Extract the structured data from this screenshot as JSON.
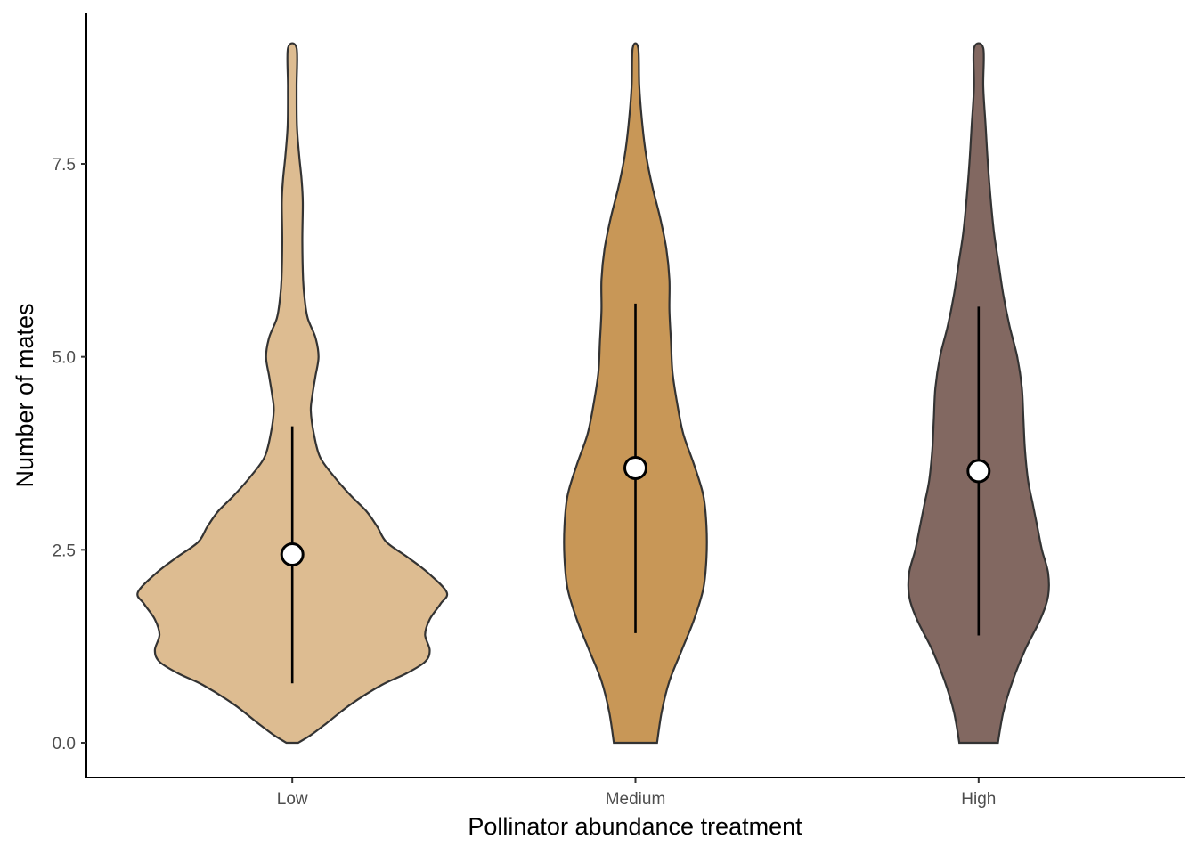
{
  "chart_data": {
    "type": "violin",
    "xlabel": "Pollinator abundance treatment",
    "ylabel": "Number of mates",
    "ylim": [
      -0.45,
      9.45
    ],
    "y_ticks": [
      0.0,
      2.5,
      5.0,
      7.5
    ],
    "y_tick_labels": [
      "0.0",
      "2.5",
      "5.0",
      "7.5"
    ],
    "grid": false,
    "legend": "none",
    "categories": [
      "Low",
      "Medium",
      "High"
    ],
    "series": [
      {
        "category": "Low",
        "color": "#DDBC91",
        "mean": 2.44,
        "error_low": 0.77,
        "error_high": 4.1,
        "y_range": [
          0,
          9
        ],
        "density": [
          [
            0.0,
            0.038
          ],
          [
            0.1,
            0.12
          ],
          [
            0.25,
            0.22
          ],
          [
            0.5,
            0.38
          ],
          [
            0.75,
            0.58
          ],
          [
            0.9,
            0.74
          ],
          [
            1.05,
            0.86
          ],
          [
            1.2,
            0.89
          ],
          [
            1.4,
            0.86
          ],
          [
            1.6,
            0.89
          ],
          [
            1.8,
            0.96
          ],
          [
            1.95,
            1.0
          ],
          [
            2.2,
            0.88
          ],
          [
            2.4,
            0.75
          ],
          [
            2.6,
            0.61
          ],
          [
            2.8,
            0.55
          ],
          [
            3.0,
            0.48
          ],
          [
            3.2,
            0.38
          ],
          [
            3.45,
            0.27
          ],
          [
            3.7,
            0.18
          ],
          [
            4.0,
            0.14
          ],
          [
            4.3,
            0.12
          ],
          [
            4.5,
            0.13
          ],
          [
            4.75,
            0.15
          ],
          [
            5.0,
            0.17
          ],
          [
            5.25,
            0.15
          ],
          [
            5.5,
            0.1
          ],
          [
            5.75,
            0.08
          ],
          [
            6.0,
            0.07
          ],
          [
            6.5,
            0.065
          ],
          [
            7.0,
            0.068
          ],
          [
            7.3,
            0.06
          ],
          [
            7.6,
            0.045
          ],
          [
            8.0,
            0.03
          ],
          [
            8.5,
            0.028
          ],
          [
            9.0,
            0.028
          ]
        ]
      },
      {
        "category": "Medium",
        "color": "#C89757",
        "mean": 3.56,
        "error_low": 1.42,
        "error_high": 5.69,
        "y_range": [
          0,
          9
        ],
        "density": [
          [
            0.0,
            0.14
          ],
          [
            0.4,
            0.17
          ],
          [
            0.8,
            0.22
          ],
          [
            1.2,
            0.3
          ],
          [
            1.6,
            0.38
          ],
          [
            2.0,
            0.44
          ],
          [
            2.4,
            0.46
          ],
          [
            2.8,
            0.46
          ],
          [
            3.2,
            0.44
          ],
          [
            3.6,
            0.38
          ],
          [
            4.0,
            0.31
          ],
          [
            4.4,
            0.27
          ],
          [
            4.8,
            0.24
          ],
          [
            5.2,
            0.23
          ],
          [
            5.6,
            0.22
          ],
          [
            6.0,
            0.22
          ],
          [
            6.4,
            0.2
          ],
          [
            6.8,
            0.16
          ],
          [
            7.2,
            0.11
          ],
          [
            7.6,
            0.07
          ],
          [
            8.0,
            0.045
          ],
          [
            8.5,
            0.025
          ],
          [
            9.0,
            0.018
          ]
        ]
      },
      {
        "category": "High",
        "color": "#826861",
        "mean": 3.52,
        "error_low": 1.39,
        "error_high": 5.65,
        "y_range": [
          0,
          9
        ],
        "density": [
          [
            0.0,
            0.125
          ],
          [
            0.4,
            0.16
          ],
          [
            0.8,
            0.22
          ],
          [
            1.2,
            0.3
          ],
          [
            1.6,
            0.4
          ],
          [
            1.9,
            0.45
          ],
          [
            2.2,
            0.45
          ],
          [
            2.5,
            0.41
          ],
          [
            2.8,
            0.38
          ],
          [
            3.1,
            0.35
          ],
          [
            3.4,
            0.32
          ],
          [
            3.8,
            0.3
          ],
          [
            4.2,
            0.29
          ],
          [
            4.6,
            0.28
          ],
          [
            5.0,
            0.25
          ],
          [
            5.4,
            0.2
          ],
          [
            5.8,
            0.16
          ],
          [
            6.2,
            0.13
          ],
          [
            6.6,
            0.1
          ],
          [
            7.0,
            0.08
          ],
          [
            7.5,
            0.06
          ],
          [
            8.0,
            0.045
          ],
          [
            8.5,
            0.03
          ],
          [
            9.0,
            0.03
          ]
        ]
      }
    ]
  }
}
